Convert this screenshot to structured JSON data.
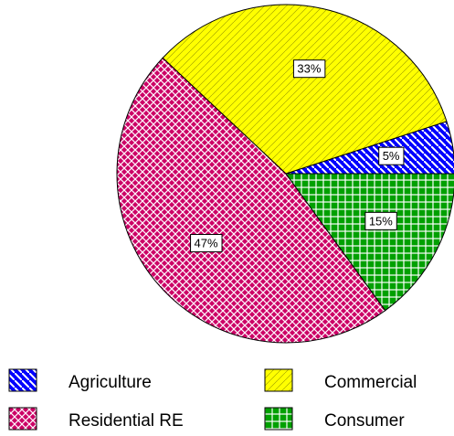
{
  "chart_data": {
    "type": "pie",
    "categories": [
      "Agriculture",
      "Commercial",
      "Residential RE",
      "Consumer"
    ],
    "values": [
      5,
      33,
      47,
      15
    ],
    "value_labels": [
      "5%",
      "33%",
      "47%",
      "15%"
    ],
    "colors": [
      "#0000ff",
      "#ffff00",
      "#cc0066",
      "#00a000"
    ],
    "legend": "bottom"
  }
}
